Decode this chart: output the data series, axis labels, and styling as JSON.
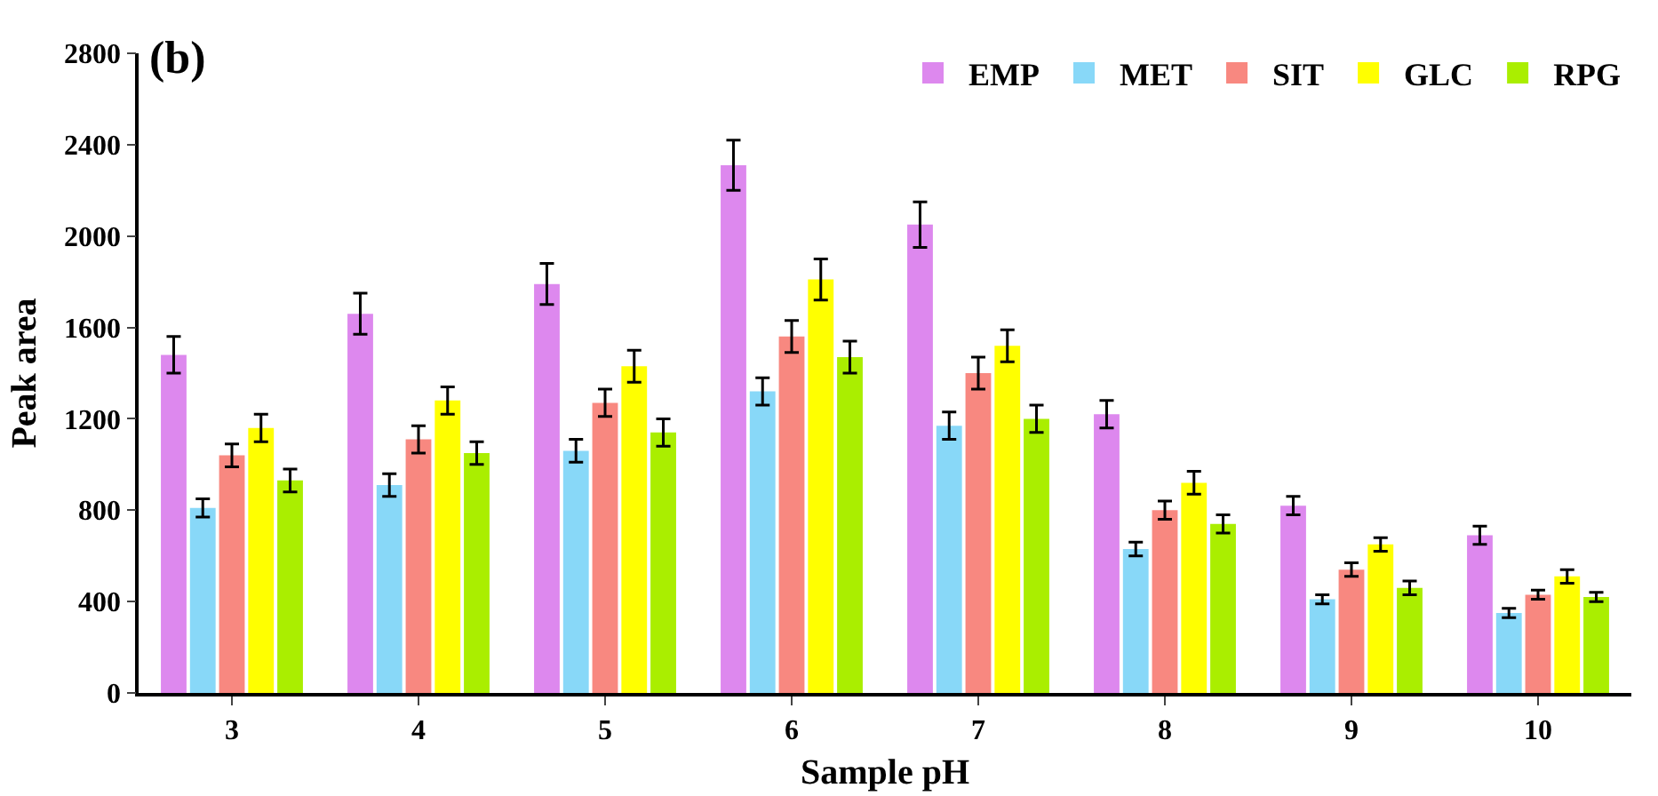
{
  "chart_data": {
    "type": "bar",
    "xlabel": "Sample pH",
    "ylabel": "Peak area",
    "annotations": [
      "(b)"
    ],
    "categories": [
      "3",
      "4",
      "5",
      "6",
      "7",
      "8",
      "9",
      "10"
    ],
    "ylim": [
      0,
      2800
    ],
    "yticks": [
      0,
      400,
      800,
      1200,
      1600,
      2000,
      2400,
      2800
    ],
    "grid": false,
    "legend": "top right",
    "series": [
      {
        "name": "EMP",
        "color": "#dd88ee",
        "values": [
          1480,
          1660,
          1790,
          2310,
          2050,
          1220,
          820,
          690
        ],
        "errors": [
          80,
          90,
          90,
          110,
          100,
          60,
          40,
          40
        ]
      },
      {
        "name": "MET",
        "color": "#88d8f8",
        "values": [
          810,
          910,
          1060,
          1320,
          1170,
          630,
          410,
          350
        ],
        "errors": [
          40,
          50,
          50,
          60,
          60,
          30,
          20,
          20
        ]
      },
      {
        "name": "SIT",
        "color": "#f88880",
        "values": [
          1040,
          1110,
          1270,
          1560,
          1400,
          800,
          540,
          430
        ],
        "errors": [
          50,
          60,
          60,
          70,
          70,
          40,
          30,
          20
        ]
      },
      {
        "name": "GLC",
        "color": "#ffff00",
        "values": [
          1160,
          1280,
          1430,
          1810,
          1520,
          920,
          650,
          510
        ],
        "errors": [
          60,
          60,
          70,
          90,
          70,
          50,
          30,
          30
        ]
      },
      {
        "name": "RPG",
        "color": "#aaee00",
        "values": [
          930,
          1050,
          1140,
          1470,
          1200,
          740,
          460,
          420
        ],
        "errors": [
          50,
          50,
          60,
          70,
          60,
          40,
          30,
          20
        ]
      }
    ]
  }
}
